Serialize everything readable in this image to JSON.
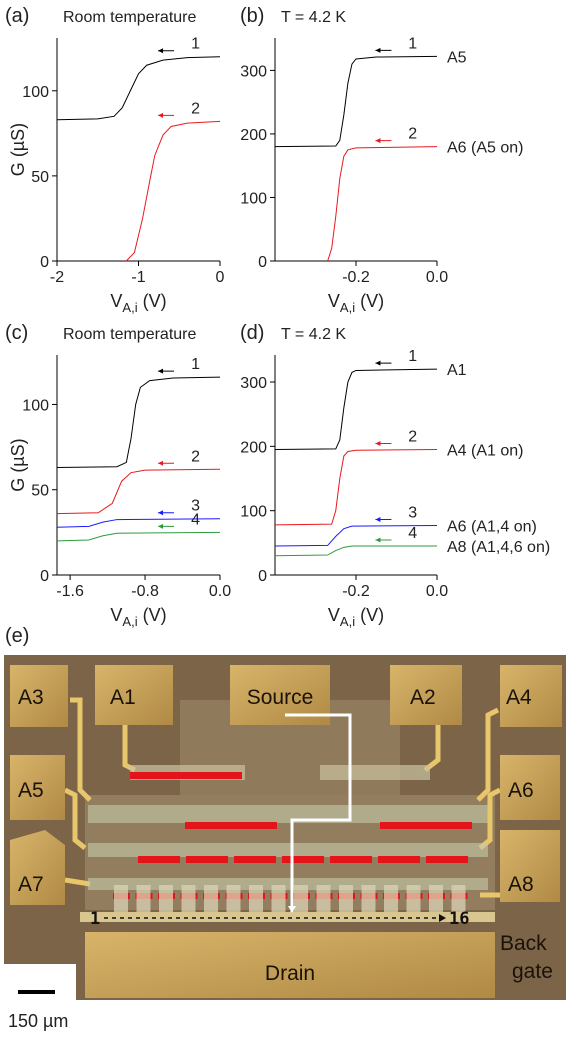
{
  "chart_data": [
    {
      "type": "line",
      "panel_label": "(a)",
      "title": "Room temperature",
      "xlabel": {
        "base": "V",
        "sub": "A,i",
        "unit": "(V)"
      },
      "ylabel": "G (µS)",
      "xlim": [
        -2,
        0
      ],
      "ylim": [
        0,
        131
      ],
      "xticks": [
        -2,
        -1,
        0
      ],
      "yticks": [
        0,
        50,
        100
      ],
      "series": [
        {
          "name": "1",
          "color": "#000000",
          "x": [
            -2,
            -1.5,
            -1.3,
            -1.2,
            -1.1,
            -1.0,
            -0.9,
            -0.7,
            -0.4,
            0
          ],
          "values": [
            83,
            83.5,
            85,
            90,
            100,
            110,
            115,
            118,
            119.5,
            120
          ]
        },
        {
          "name": "2",
          "color": "#e8191e",
          "x": [
            -1.15,
            -1.05,
            -0.95,
            -0.85,
            -0.8,
            -0.7,
            -0.6,
            -0.4,
            0
          ],
          "values": [
            0,
            5,
            25,
            50,
            62,
            74,
            79,
            81,
            82
          ]
        }
      ]
    },
    {
      "type": "line",
      "panel_label": "(b)",
      "title": "T = 4.2 K",
      "xlabel": {
        "base": "V",
        "sub": "A,i",
        "unit": "(V)"
      },
      "xlim": [
        -0.4,
        0
      ],
      "ylim": [
        0,
        351
      ],
      "xticks": [
        -0.2,
        {
          "value": 0,
          "label": "0.0"
        }
      ],
      "yticks": [
        0,
        100,
        200,
        300
      ],
      "series": [
        {
          "name": "1",
          "side_label": "A5",
          "color": "#000000",
          "x": [
            -0.4,
            -0.25,
            -0.24,
            -0.23,
            -0.22,
            -0.21,
            -0.2,
            -0.15,
            0
          ],
          "values": [
            180,
            181,
            190,
            230,
            280,
            310,
            318,
            321,
            322
          ]
        },
        {
          "name": "2",
          "side_label": "A6 (A5 on)",
          "color": "#e8191e",
          "x": [
            -0.27,
            -0.26,
            -0.25,
            -0.24,
            -0.23,
            -0.22,
            -0.2,
            0
          ],
          "values": [
            0,
            20,
            70,
            130,
            165,
            175,
            178,
            180
          ]
        }
      ]
    },
    {
      "type": "line",
      "panel_label": "(c)",
      "title": "Room temperature",
      "xlabel": {
        "base": "V",
        "sub": "A,i",
        "unit": "(V)"
      },
      "ylabel": "G (µS)",
      "xlim": [
        -1.74,
        0
      ],
      "ylim": [
        0,
        129
      ],
      "xticks": [
        -1.6,
        -0.8,
        {
          "value": 0,
          "label": "0.0"
        }
      ],
      "yticks": [
        0,
        50,
        100
      ],
      "series": [
        {
          "name": "1",
          "color": "#000000",
          "x": [
            -1.74,
            -1.1,
            -1.0,
            -0.95,
            -0.9,
            -0.85,
            -0.75,
            -0.5,
            0
          ],
          "values": [
            63,
            63.5,
            66,
            80,
            100,
            110,
            114,
            115.5,
            116
          ]
        },
        {
          "name": "2",
          "color": "#e8191e",
          "x": [
            -1.74,
            -1.3,
            -1.15,
            -1.05,
            -0.95,
            -0.8,
            0
          ],
          "values": [
            36,
            36.5,
            42,
            55,
            60,
            61.5,
            62
          ]
        },
        {
          "name": "3",
          "color": "#1a1aff",
          "x": [
            -1.74,
            -1.4,
            -1.25,
            -1.1,
            0
          ],
          "values": [
            28,
            28.5,
            31,
            32.5,
            33
          ]
        },
        {
          "name": "4",
          "color": "#2e9a3e",
          "x": [
            -1.74,
            -1.4,
            -1.25,
            -1.1,
            0
          ],
          "values": [
            20,
            20.5,
            23,
            24.5,
            25
          ]
        }
      ]
    },
    {
      "type": "line",
      "panel_label": "(d)",
      "title": "T = 4.2 K",
      "xlabel": {
        "base": "V",
        "sub": "A,i",
        "unit": "(V)"
      },
      "xlim": [
        -0.4,
        0
      ],
      "ylim": [
        0,
        342
      ],
      "xticks": [
        -0.2,
        {
          "value": 0,
          "label": "0.0"
        }
      ],
      "yticks": [
        0,
        100,
        200,
        300
      ],
      "series": [
        {
          "name": "1",
          "side_label": "A1",
          "color": "#000000",
          "x": [
            -0.4,
            -0.25,
            -0.24,
            -0.23,
            -0.22,
            -0.21,
            -0.2,
            0
          ],
          "values": [
            195,
            196,
            210,
            260,
            300,
            315,
            318,
            320
          ]
        },
        {
          "name": "2",
          "side_label": "A4 (A1 on)",
          "color": "#e8191e",
          "x": [
            -0.4,
            -0.26,
            -0.25,
            -0.24,
            -0.23,
            -0.22,
            -0.2,
            0
          ],
          "values": [
            78,
            79,
            100,
            150,
            185,
            192,
            194,
            195
          ]
        },
        {
          "name": "3",
          "side_label": "A6 (A1,4 on)",
          "color": "#1a1aff",
          "x": [
            -0.4,
            -0.27,
            -0.25,
            -0.23,
            -0.21,
            0
          ],
          "values": [
            45,
            46,
            60,
            72,
            76,
            77
          ]
        },
        {
          "name": "4",
          "side_label": "A8 (A1,4,6 on)",
          "color": "#2e9a3e",
          "x": [
            -0.4,
            -0.27,
            -0.25,
            -0.23,
            -0.21,
            0
          ],
          "values": [
            30,
            31,
            38,
            43,
            45,
            45
          ]
        }
      ]
    }
  ],
  "photo": {
    "panel_label": "(e)",
    "pads": [
      "A3",
      "A1",
      "Source",
      "A2",
      "A4",
      "A5",
      "A6",
      "A7",
      "A8"
    ],
    "drain": "Drain",
    "back_gate": [
      "Back",
      "gate"
    ],
    "gate_first": "1",
    "gate_last": "16",
    "scale": "150 µm"
  }
}
